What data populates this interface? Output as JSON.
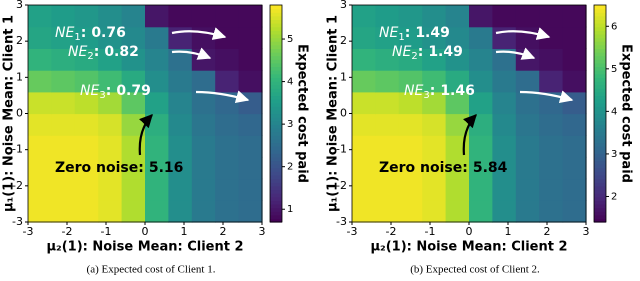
{
  "chart_data": [
    {
      "type": "heatmap",
      "caption": "(a) Expected cost of Client 1.",
      "xlabel": "μ₂(1): Noise Mean: Client 2",
      "ylabel": "μ₁(1): Noise Mean: Client 1",
      "colorbar_label": "Expected cost paid",
      "xlim": [
        -3,
        3
      ],
      "ylim": [
        -3,
        3
      ],
      "xticks": [
        -3,
        -2,
        -1,
        0,
        1,
        2,
        3
      ],
      "yticks": [
        -3,
        -2,
        -1,
        0,
        1,
        2,
        3
      ],
      "clim": [
        0.7,
        5.8
      ],
      "cticks": [
        1,
        2,
        3,
        4,
        5
      ],
      "colormap": "viridis",
      "z": [
        [
          5.7,
          5.7,
          5.7,
          5.6,
          5.2,
          4.0,
          3.2,
          2.8,
          2.6,
          2.5
        ],
        [
          5.7,
          5.7,
          5.7,
          5.6,
          5.2,
          4.0,
          3.2,
          2.8,
          2.6,
          2.5
        ],
        [
          5.7,
          5.7,
          5.7,
          5.6,
          5.2,
          4.0,
          3.2,
          2.8,
          2.6,
          2.5
        ],
        [
          5.7,
          5.7,
          5.7,
          5.6,
          5.2,
          4.0,
          3.2,
          2.8,
          2.6,
          2.5
        ],
        [
          5.6,
          5.6,
          5.6,
          5.5,
          5.0,
          3.9,
          3.1,
          2.7,
          2.5,
          2.4
        ],
        [
          5.4,
          5.4,
          5.3,
          5.1,
          4.5,
          3.6,
          3.0,
          2.6,
          2.4,
          2.2
        ],
        [
          4.6,
          4.5,
          4.4,
          4.2,
          3.8,
          3.2,
          2.8,
          2.5,
          1.2,
          0.9
        ],
        [
          4.0,
          3.9,
          3.8,
          3.6,
          3.3,
          3.0,
          2.6,
          1.0,
          0.9,
          0.8
        ],
        [
          3.7,
          3.6,
          3.5,
          3.3,
          3.1,
          2.8,
          1.2,
          0.9,
          0.8,
          0.8
        ],
        [
          3.6,
          3.5,
          3.4,
          3.2,
          3.0,
          1.0,
          0.8,
          0.8,
          0.8,
          0.8
        ]
      ],
      "annotations": [
        {
          "label": "NE",
          "sub": "1",
          "suffix": ":",
          "value": 0.76
        },
        {
          "label": "NE",
          "sub": "2",
          "suffix": ":",
          "value": 0.82
        },
        {
          "label": "NE",
          "sub": "3",
          "suffix": ":",
          "value": 0.79
        },
        {
          "label": "Zero noise",
          "suffix": ":",
          "value": 5.16
        }
      ]
    },
    {
      "type": "heatmap",
      "caption": "(b) Expected cost of Client 2.",
      "xlabel": "μ₂(1): Noise Mean: Client 2",
      "ylabel": "μ₁(1): Noise Mean: Client 1",
      "colorbar_label": "Expected cost paid",
      "xlim": [
        -3,
        3
      ],
      "ylim": [
        -3,
        3
      ],
      "xticks": [
        -3,
        -2,
        -1,
        0,
        1,
        2,
        3
      ],
      "yticks": [
        -3,
        -2,
        -1,
        0,
        1,
        2,
        3
      ],
      "clim": [
        1.4,
        6.5
      ],
      "cticks": [
        2,
        3,
        4,
        5,
        6
      ],
      "colormap": "viridis",
      "z": [
        [
          6.4,
          6.4,
          6.4,
          6.3,
          5.9,
          4.7,
          3.9,
          3.5,
          3.3,
          3.2
        ],
        [
          6.4,
          6.4,
          6.4,
          6.3,
          5.9,
          4.7,
          3.9,
          3.5,
          3.3,
          3.2
        ],
        [
          6.4,
          6.4,
          6.4,
          6.3,
          5.9,
          4.7,
          3.9,
          3.5,
          3.3,
          3.2
        ],
        [
          6.4,
          6.4,
          6.4,
          6.3,
          5.9,
          4.7,
          3.9,
          3.5,
          3.3,
          3.2
        ],
        [
          6.3,
          6.3,
          6.3,
          6.2,
          5.7,
          4.6,
          3.8,
          3.4,
          3.2,
          3.1
        ],
        [
          6.1,
          6.1,
          6.0,
          5.8,
          5.2,
          4.3,
          3.7,
          3.3,
          3.1,
          2.9
        ],
        [
          5.3,
          5.2,
          5.1,
          4.9,
          4.5,
          3.9,
          3.5,
          3.2,
          1.9,
          1.6
        ],
        [
          4.7,
          4.6,
          4.5,
          4.3,
          4.0,
          3.7,
          3.3,
          1.7,
          1.6,
          1.5
        ],
        [
          4.4,
          4.3,
          4.2,
          4.0,
          3.8,
          3.5,
          1.9,
          1.6,
          1.5,
          1.5
        ],
        [
          4.3,
          4.2,
          4.1,
          3.9,
          3.7,
          1.7,
          1.5,
          1.5,
          1.5,
          1.5
        ]
      ],
      "annotations": [
        {
          "label": "NE",
          "sub": "1",
          "suffix": ":",
          "value": 1.49
        },
        {
          "label": "NE",
          "sub": "2",
          "suffix": ":",
          "value": 1.49
        },
        {
          "label": "NE",
          "sub": "3",
          "suffix": ":",
          "value": 1.46
        },
        {
          "label": "Zero noise",
          "suffix": ":",
          "value": 5.84
        }
      ]
    }
  ]
}
